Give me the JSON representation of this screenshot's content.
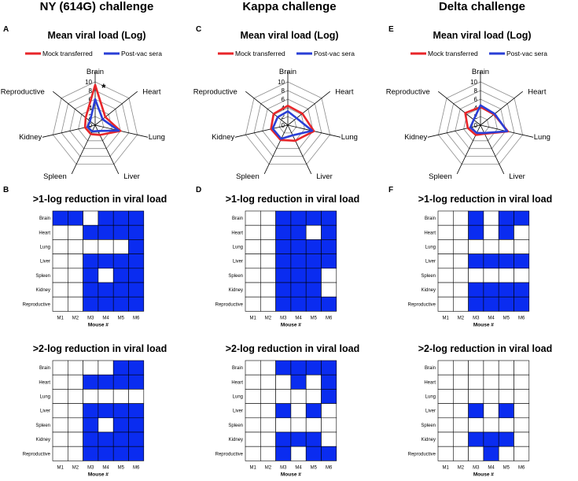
{
  "columns": [
    {
      "challenge": "NY (614G) challenge",
      "radar": {
        "letter": "A",
        "chart_data": {
          "type": "radar",
          "title": "Mean viral load (Log)",
          "axes": [
            "Brain",
            "Heart",
            "Lung",
            "Liver",
            "Spleen",
            "Kidney",
            "Reproductive"
          ],
          "rlim": [
            0,
            10
          ],
          "ticks": [
            "0",
            "2",
            "4",
            "6",
            "8",
            "10"
          ],
          "annotation": "*",
          "series": [
            {
              "name": "Mock transferred",
              "color": "#e8262a",
              "values": [
                9.3,
                3.0,
                6.0,
                2.5,
                2.3,
                2.4,
                2.8
              ]
            },
            {
              "name": "Post-vac sera",
              "color": "#2a3fd6",
              "values": [
                6.0,
                2.2,
                5.6,
                1.5,
                1.6,
                1.8,
                1.5
              ]
            }
          ]
        }
      },
      "heatmaps": [
        {
          "letter": "B",
          "chart_data": {
            "type": "heatmap",
            "title": ">1-log reduction in viral load",
            "rows": [
              "Brain",
              "Heart",
              "Lung",
              "Liver",
              "Spleen",
              "Kidney",
              "Reproductive"
            ],
            "cols": [
              "M1",
              "M2",
              "M3",
              "M4",
              "M5",
              "M6"
            ],
            "xlabel": "Mouse #",
            "values": [
              [
                1,
                1,
                0,
                1,
                1,
                1
              ],
              [
                0,
                0,
                1,
                1,
                1,
                1
              ],
              [
                0,
                0,
                0,
                0,
                0,
                1
              ],
              [
                0,
                0,
                1,
                1,
                1,
                1
              ],
              [
                0,
                0,
                1,
                0,
                1,
                1
              ],
              [
                0,
                0,
                1,
                1,
                1,
                1
              ],
              [
                0,
                0,
                1,
                1,
                1,
                1
              ]
            ]
          }
        },
        {
          "letter": "",
          "chart_data": {
            "type": "heatmap",
            "title": ">2-log reduction in viral load",
            "rows": [
              "Brain",
              "Heart",
              "Lung",
              "Liver",
              "Spleen",
              "Kidney",
              "Reproductive"
            ],
            "cols": [
              "M1",
              "M2",
              "M3",
              "M4",
              "M5",
              "M6"
            ],
            "xlabel": "Mouse #",
            "values": [
              [
                0,
                0,
                0,
                0,
                1,
                1
              ],
              [
                0,
                0,
                1,
                1,
                1,
                1
              ],
              [
                0,
                0,
                0,
                0,
                0,
                0
              ],
              [
                0,
                0,
                1,
                1,
                1,
                1
              ],
              [
                0,
                0,
                1,
                0,
                1,
                1
              ],
              [
                0,
                0,
                1,
                1,
                1,
                1
              ],
              [
                0,
                0,
                1,
                1,
                1,
                1
              ]
            ]
          }
        }
      ]
    },
    {
      "challenge": "Kappa challenge",
      "radar": {
        "letter": "C",
        "chart_data": {
          "type": "radar",
          "title": "Mean viral load (Log)",
          "axes": [
            "Brain",
            "Heart",
            "Lung",
            "Liver",
            "Spleen",
            "Kidney",
            "Reproductive"
          ],
          "rlim": [
            0,
            10
          ],
          "ticks": [
            "0",
            "2",
            "4",
            "6",
            "8",
            "10"
          ],
          "annotation": "",
          "series": [
            {
              "name": "Mock transferred",
              "color": "#e8262a",
              "values": [
                4.5,
                4.3,
                6.2,
                4.0,
                3.8,
                4.0,
                4.2
              ]
            },
            {
              "name": "Post-vac sera",
              "color": "#2a3fd6",
              "values": [
                3.2,
                2.6,
                5.8,
                2.6,
                3.5,
                3.6,
                3.0
              ]
            }
          ]
        }
      },
      "heatmaps": [
        {
          "letter": "D",
          "chart_data": {
            "type": "heatmap",
            "title": ">1-log reduction in viral load",
            "rows": [
              "Brain",
              "Heart",
              "Lung",
              "Liver",
              "Spleen",
              "Kidney",
              "Reproductive"
            ],
            "cols": [
              "M1",
              "M2",
              "M3",
              "M4",
              "M5",
              "M6"
            ],
            "xlabel": "Mouse #",
            "values": [
              [
                0,
                0,
                1,
                1,
                1,
                1
              ],
              [
                0,
                0,
                1,
                1,
                0,
                1
              ],
              [
                0,
                0,
                1,
                1,
                1,
                1
              ],
              [
                0,
                0,
                1,
                1,
                1,
                1
              ],
              [
                0,
                0,
                1,
                1,
                1,
                0
              ],
              [
                0,
                0,
                1,
                1,
                1,
                0
              ],
              [
                0,
                0,
                1,
                1,
                1,
                1
              ]
            ]
          }
        },
        {
          "letter": "",
          "chart_data": {
            "type": "heatmap",
            "title": ">2-log reduction in viral load",
            "rows": [
              "Brain",
              "Heart",
              "Lung",
              "Liver",
              "Spleen",
              "Kidney",
              "Reproductive"
            ],
            "cols": [
              "M1",
              "M2",
              "M3",
              "M4",
              "M5",
              "M6"
            ],
            "xlabel": "Mouse #",
            "values": [
              [
                0,
                0,
                1,
                1,
                1,
                1
              ],
              [
                0,
                0,
                0,
                1,
                0,
                1
              ],
              [
                0,
                0,
                0,
                0,
                0,
                1
              ],
              [
                0,
                0,
                1,
                0,
                1,
                0
              ],
              [
                0,
                0,
                0,
                0,
                0,
                0
              ],
              [
                0,
                0,
                1,
                1,
                1,
                0
              ],
              [
                0,
                0,
                1,
                0,
                1,
                1
              ]
            ]
          }
        }
      ]
    },
    {
      "challenge": "Delta challenge",
      "radar": {
        "letter": "E",
        "chart_data": {
          "type": "radar",
          "title": "Mean viral load (Log)",
          "axes": [
            "Brain",
            "Heart",
            "Lung",
            "Liver",
            "Spleen",
            "Kidney",
            "Reproductive"
          ],
          "rlim": [
            0,
            10
          ],
          "ticks": [
            "0",
            "2",
            "4",
            "6",
            "8",
            "10"
          ],
          "annotation": "",
          "series": [
            {
              "name": "Mock transferred",
              "color": "#e8262a",
              "values": [
                4.2,
                4.0,
                6.5,
                2.2,
                2.5,
                3.0,
                4.5
              ]
            },
            {
              "name": "Post-vac sera",
              "color": "#2a3fd6",
              "values": [
                4.6,
                4.2,
                6.3,
                2.0,
                2.0,
                2.4,
                2.0
              ]
            }
          ]
        }
      },
      "heatmaps": [
        {
          "letter": "F",
          "chart_data": {
            "type": "heatmap",
            "title": ">1-log reduction in viral load",
            "rows": [
              "Brain",
              "Heart",
              "Lung",
              "Liver",
              "Spleen",
              "Kidney",
              "Reproductive"
            ],
            "cols": [
              "M1",
              "M2",
              "M3",
              "M4",
              "M5",
              "M6"
            ],
            "xlabel": "Mouse #",
            "values": [
              [
                0,
                0,
                1,
                0,
                1,
                1
              ],
              [
                0,
                0,
                1,
                0,
                1,
                0
              ],
              [
                0,
                0,
                0,
                0,
                0,
                0
              ],
              [
                0,
                0,
                1,
                1,
                1,
                1
              ],
              [
                0,
                0,
                0,
                0,
                0,
                0
              ],
              [
                0,
                0,
                1,
                1,
                1,
                1
              ],
              [
                0,
                0,
                1,
                1,
                1,
                1
              ]
            ]
          }
        },
        {
          "letter": "",
          "chart_data": {
            "type": "heatmap",
            "title": ">2-log reduction in viral load",
            "rows": [
              "Brain",
              "Heart",
              "Lung",
              "Liver",
              "Spleen",
              "Kidney",
              "Reproductive"
            ],
            "cols": [
              "M1",
              "M2",
              "M3",
              "M4",
              "M5",
              "M6"
            ],
            "xlabel": "Mouse #",
            "values": [
              [
                0,
                0,
                0,
                0,
                0,
                0
              ],
              [
                0,
                0,
                0,
                0,
                0,
                0
              ],
              [
                0,
                0,
                0,
                0,
                0,
                0
              ],
              [
                0,
                0,
                1,
                0,
                1,
                0
              ],
              [
                0,
                0,
                0,
                0,
                0,
                0
              ],
              [
                0,
                0,
                1,
                1,
                1,
                0
              ],
              [
                0,
                0,
                0,
                1,
                0,
                0
              ]
            ]
          }
        }
      ]
    }
  ],
  "colors": {
    "fill": "#0a2cf0",
    "grid": "#000000",
    "ring": "#8a8a8a"
  }
}
